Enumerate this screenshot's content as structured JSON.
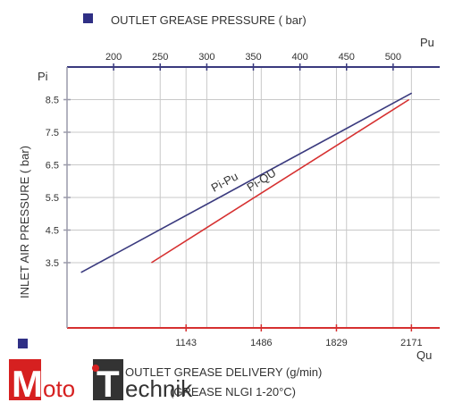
{
  "chart_data": {
    "type": "line",
    "top_axis": {
      "title": "OUTLET GREASE PRESSURE ( bar)",
      "symbol": "Pu",
      "ticks": [
        200,
        250,
        300,
        350,
        400,
        450,
        500
      ],
      "range": [
        150,
        550
      ],
      "color": "#3a3a7e"
    },
    "bottom_axis": {
      "title": "OUTLET GREASE DELIVERY (g/min)",
      "subtitle": "(GREASE NLGI 1-20°C)",
      "symbol": "Qu",
      "ticks": [
        1143,
        1486,
        1829,
        2171
      ],
      "range": [
        600,
        2300
      ],
      "color": "#d63030"
    },
    "y_axis": {
      "title": "INLET AIR PRESSURE ( bar)",
      "symbol": "Pi",
      "ticks": [
        3.5,
        4.5,
        5.5,
        6.5,
        7.5,
        8.5
      ],
      "range": [
        1.5,
        9.5
      ]
    },
    "series": [
      {
        "name": "Pi-Pu",
        "axis": "top",
        "color": "#3a3a7e",
        "points": [
          {
            "x": 165,
            "y": 3.2
          },
          {
            "x": 520,
            "y": 8.7
          }
        ]
      },
      {
        "name": "Pi-QU",
        "axis": "bottom",
        "color": "#d63030",
        "points": [
          {
            "x": 985,
            "y": 3.5
          },
          {
            "x": 2160,
            "y": 8.5
          }
        ]
      }
    ],
    "grid": true,
    "legend_markers": true
  },
  "watermark": {
    "text": "MotoTechnik",
    "colors": [
      "#d62020",
      "#333333"
    ]
  }
}
